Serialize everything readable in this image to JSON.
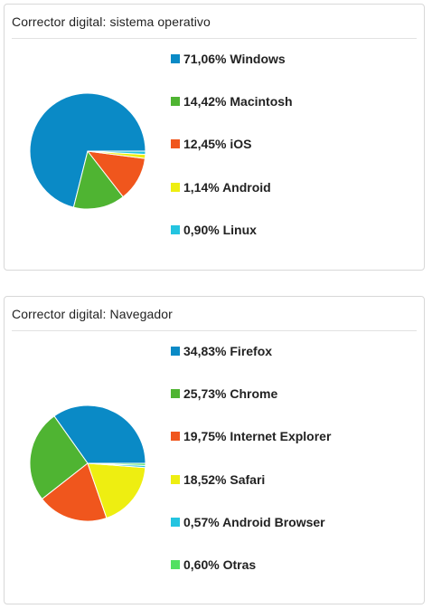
{
  "chart_data": [
    {
      "type": "pie",
      "title": "Corrector digital: sistema operativo",
      "slices": [
        {
          "label": "Windows",
          "value": 71.06,
          "display": "71,06% Windows",
          "color": "#0a8ac6"
        },
        {
          "label": "Macintosh",
          "value": 14.42,
          "display": "14,42% Macintosh",
          "color": "#4fb432"
        },
        {
          "label": "iOS",
          "value": 12.45,
          "display": "12,45% iOS",
          "color": "#f0561d"
        },
        {
          "label": "Android",
          "value": 1.14,
          "display": "1,14% Android",
          "color": "#eeee11"
        },
        {
          "label": "Linux",
          "value": 0.9,
          "display": "0,90% Linux",
          "color": "#24c4e0"
        }
      ],
      "legend_position": "right"
    },
    {
      "type": "pie",
      "title": "Corrector digital: Navegador",
      "slices": [
        {
          "label": "Firefox",
          "value": 34.83,
          "display": "34,83% Firefox",
          "color": "#0a8ac6"
        },
        {
          "label": "Chrome",
          "value": 25.73,
          "display": "25,73% Chrome",
          "color": "#4fb432"
        },
        {
          "label": "Internet Explorer",
          "value": 19.75,
          "display": "19,75% Internet Explorer",
          "color": "#f0561d"
        },
        {
          "label": "Safari",
          "value": 18.52,
          "display": "18,52% Safari",
          "color": "#eeee11"
        },
        {
          "label": "Android Browser",
          "value": 0.57,
          "display": "0,57% Android Browser",
          "color": "#24c4e0"
        },
        {
          "label": "Otras",
          "value": 0.6,
          "display": "0,60% Otras",
          "color": "#52e062"
        }
      ],
      "legend_position": "right"
    }
  ]
}
